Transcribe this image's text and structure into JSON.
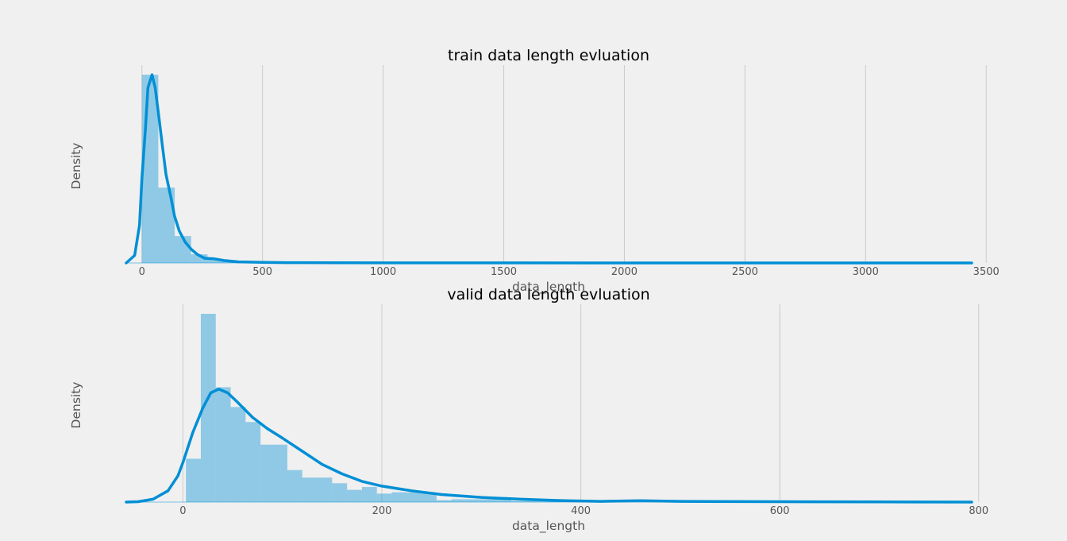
{
  "colors": {
    "background": "#f0f0f0",
    "grid": "#cbcbcb",
    "line": "#008fd5",
    "bar_fill": "#008fd5",
    "bar_alpha": 0.4
  },
  "chart_data": [
    {
      "type": "histogram",
      "title": "train data length evluation",
      "xlabel": "data_length",
      "ylabel": "Density",
      "xlim": [
        -65,
        3440
      ],
      "ylim": [
        0,
        1
      ],
      "xticks": [
        0,
        500,
        1000,
        1500,
        2000,
        2500,
        3000,
        3500
      ],
      "grid": "vertical",
      "bins": [
        [
          0,
          68,
          1.0
        ],
        [
          68,
          136,
          0.4
        ],
        [
          136,
          204,
          0.143
        ],
        [
          204,
          272,
          0.046
        ],
        [
          272,
          340,
          0.018
        ],
        [
          340,
          408,
          0.01
        ],
        [
          408,
          476,
          0.006
        ],
        [
          476,
          544,
          0.004
        ],
        [
          544,
          612,
          0.002
        ],
        [
          612,
          680,
          0.0015
        ],
        [
          680,
          3430,
          0.0005
        ]
      ],
      "kde": [
        [
          -65,
          0
        ],
        [
          -30,
          0.04
        ],
        [
          -10,
          0.2
        ],
        [
          0,
          0.45
        ],
        [
          15,
          0.72
        ],
        [
          25,
          0.93
        ],
        [
          42,
          1.0
        ],
        [
          55,
          0.93
        ],
        [
          70,
          0.78
        ],
        [
          85,
          0.62
        ],
        [
          100,
          0.47
        ],
        [
          120,
          0.35
        ],
        [
          135,
          0.25
        ],
        [
          155,
          0.17
        ],
        [
          180,
          0.11
        ],
        [
          205,
          0.072
        ],
        [
          230,
          0.045
        ],
        [
          260,
          0.025
        ],
        [
          300,
          0.022
        ],
        [
          340,
          0.013
        ],
        [
          400,
          0.006
        ],
        [
          500,
          0.003
        ],
        [
          600,
          0.0015
        ],
        [
          800,
          0.0008
        ],
        [
          1500,
          0.0003
        ],
        [
          2500,
          0.0002
        ],
        [
          3440,
          0
        ]
      ]
    },
    {
      "type": "histogram",
      "title": "valid data length evluation",
      "xlabel": "data_length",
      "ylabel": "Density",
      "xlim": [
        -57,
        793
      ],
      "ylim": [
        0,
        1
      ],
      "xticks": [
        0,
        200,
        400,
        600,
        800
      ],
      "grid": "vertical",
      "bins": [
        [
          3,
          18,
          0.23
        ],
        [
          18,
          33,
          1.0
        ],
        [
          33,
          48,
          0.61
        ],
        [
          48,
          63,
          0.505
        ],
        [
          63,
          78,
          0.425
        ],
        [
          78,
          105,
          0.305
        ],
        [
          105,
          120,
          0.17
        ],
        [
          120,
          150,
          0.13
        ],
        [
          150,
          165,
          0.1
        ],
        [
          165,
          180,
          0.065
        ],
        [
          180,
          195,
          0.08
        ],
        [
          195,
          210,
          0.045
        ],
        [
          210,
          255,
          0.052
        ],
        [
          255,
          270,
          0.01
        ],
        [
          270,
          330,
          0.015
        ],
        [
          330,
          460,
          0.006
        ],
        [
          460,
          790,
          0.004
        ]
      ],
      "kde": [
        [
          -57,
          0
        ],
        [
          -45,
          0.002
        ],
        [
          -30,
          0.015
        ],
        [
          -15,
          0.06
        ],
        [
          -5,
          0.14
        ],
        [
          0,
          0.21
        ],
        [
          10,
          0.37
        ],
        [
          20,
          0.5
        ],
        [
          28,
          0.58
        ],
        [
          36,
          0.6
        ],
        [
          45,
          0.58
        ],
        [
          55,
          0.53
        ],
        [
          70,
          0.45
        ],
        [
          85,
          0.39
        ],
        [
          100,
          0.34
        ],
        [
          120,
          0.27
        ],
        [
          140,
          0.2
        ],
        [
          160,
          0.15
        ],
        [
          180,
          0.11
        ],
        [
          200,
          0.085
        ],
        [
          230,
          0.06
        ],
        [
          260,
          0.04
        ],
        [
          300,
          0.025
        ],
        [
          340,
          0.015
        ],
        [
          380,
          0.008
        ],
        [
          420,
          0.004
        ],
        [
          460,
          0.007
        ],
        [
          500,
          0.004
        ],
        [
          600,
          0.002
        ],
        [
          700,
          0.001
        ],
        [
          793,
          0
        ]
      ]
    }
  ]
}
